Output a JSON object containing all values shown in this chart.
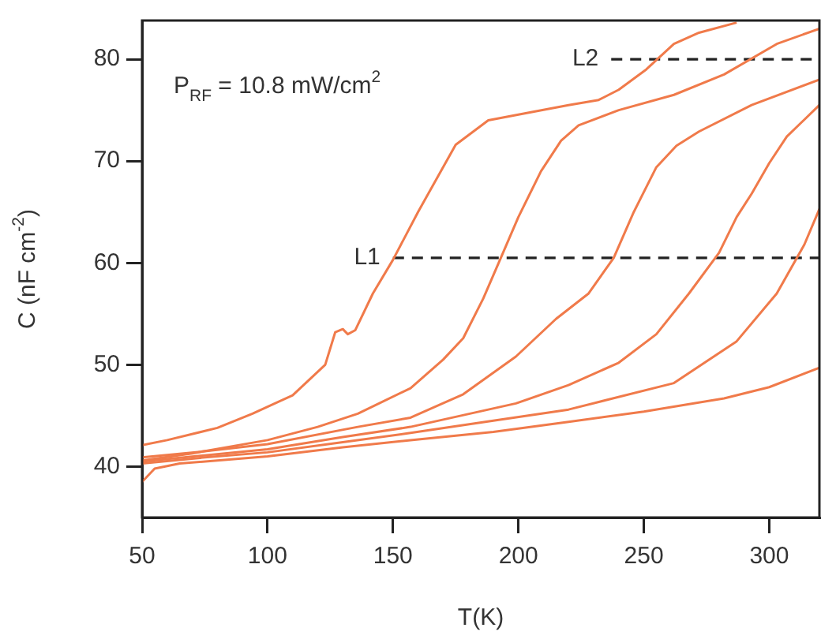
{
  "chart_data": {
    "type": "line",
    "xlabel": "T(K)",
    "ylabel": "C (nF cm$^{-2}$)",
    "annotations": [
      "P$_{RF}$ = 10.8 mW/cm$^{2}$"
    ],
    "xlim": [
      50,
      320
    ],
    "ylim": [
      35,
      83.8
    ],
    "xticks": [
      50,
      100,
      150,
      200,
      250,
      300
    ],
    "yticks": [
      40,
      50,
      60,
      70,
      80
    ],
    "grid": false,
    "legend": false,
    "marker": "none",
    "line_style": "solid",
    "series": [
      {
        "color": "#f07a4a",
        "x": [
          50,
          60,
          80,
          94,
          110,
          123,
          127,
          130,
          132,
          135,
          142,
          150,
          160,
          175,
          188,
          205,
          220,
          232,
          240,
          251,
          262,
          272,
          287
        ],
        "values": [
          42.1,
          42.6,
          43.8,
          45.2,
          47.0,
          50,
          53.2,
          53.5,
          53.0,
          53.4,
          57,
          60.3,
          65,
          71.6,
          74,
          74.8,
          75.5,
          76,
          77,
          79,
          81.5,
          82.6,
          83.6
        ]
      },
      {
        "color": "#f07a4a",
        "x": [
          50,
          70,
          100,
          120,
          136,
          157,
          170,
          178,
          186,
          193,
          200,
          209,
          217,
          224,
          240,
          262,
          282,
          303,
          320
        ],
        "values": [
          40.6,
          41.3,
          42.6,
          43.9,
          45.2,
          47.7,
          50.5,
          52.6,
          56.5,
          60.5,
          64.5,
          69,
          72,
          73.5,
          75,
          76.5,
          78.5,
          81.5,
          83
        ]
      },
      {
        "color": "#f07a4a",
        "x": [
          50,
          75,
          100,
          136,
          157,
          178,
          199,
          215,
          228,
          238,
          246,
          255,
          263,
          272,
          293,
          320
        ],
        "values": [
          40.9,
          41.5,
          42.2,
          43.9,
          44.8,
          47.1,
          50.8,
          54.5,
          57,
          60.5,
          65,
          69.4,
          71.5,
          72.9,
          75.5,
          78
        ]
      },
      {
        "color": "#f07a4a",
        "x": [
          50,
          75,
          100,
          130,
          157,
          199,
          220,
          240,
          255,
          268,
          280,
          287,
          293,
          300,
          307,
          320
        ],
        "values": [
          40.5,
          41.1,
          41.7,
          42.9,
          43.9,
          46.2,
          48,
          50.2,
          53,
          57,
          61,
          64.5,
          66.8,
          69.8,
          72.4,
          75.5
        ]
      },
      {
        "color": "#f07a4a",
        "x": [
          50,
          75,
          100,
          130,
          157,
          190,
          220,
          262,
          287,
          303,
          314,
          320
        ],
        "values": [
          40.3,
          40.9,
          41.4,
          42.4,
          43.3,
          44.5,
          45.6,
          48.2,
          52.3,
          57,
          61.8,
          65.3
        ]
      },
      {
        "color": "#f07a4a",
        "x": [
          50,
          55,
          65,
          100,
          130,
          157,
          190,
          220,
          250,
          282,
          300,
          320
        ],
        "values": [
          38.5,
          39.8,
          40.3,
          41.0,
          41.9,
          42.6,
          43.4,
          44.4,
          45.4,
          46.7,
          47.8,
          49.7
        ]
      },
      {
        "name": "L1",
        "color": "#222222",
        "line_style": "dashed",
        "x": [
          150,
          320
        ],
        "values": [
          60.5,
          60.5
        ]
      },
      {
        "name": "L2",
        "color": "#222222",
        "line_style": "dashed",
        "x": [
          237,
          320
        ],
        "values": [
          80,
          80
        ]
      }
    ]
  }
}
